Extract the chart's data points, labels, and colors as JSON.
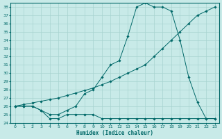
{
  "xlabel": "Humidex (Indice chaleur)",
  "ylabel": "",
  "background_color": "#c8eae8",
  "grid_color": "#a8d4d0",
  "line_color": "#006868",
  "xlim": [
    -0.5,
    23.5
  ],
  "ylim": [
    24,
    38.5
  ],
  "yticks": [
    24,
    25,
    26,
    27,
    28,
    29,
    30,
    31,
    32,
    33,
    34,
    35,
    36,
    37,
    38
  ],
  "xticks": [
    0,
    1,
    2,
    3,
    4,
    5,
    6,
    7,
    8,
    9,
    10,
    11,
    12,
    13,
    14,
    15,
    16,
    17,
    18,
    19,
    20,
    21,
    22,
    23
  ],
  "line1_x": [
    0,
    1,
    2,
    3,
    4,
    5,
    6,
    7,
    8,
    9,
    10,
    11,
    12,
    13,
    14,
    15,
    16,
    17,
    18,
    19,
    20,
    21,
    22,
    23
  ],
  "line1_y": [
    26.0,
    26.0,
    26.0,
    25.5,
    24.5,
    24.5,
    25.0,
    25.0,
    25.0,
    25.0,
    24.5,
    24.5,
    24.5,
    24.5,
    24.5,
    24.5,
    24.5,
    24.5,
    24.5,
    24.5,
    24.5,
    24.5,
    24.5,
    24.5
  ],
  "line2_x": [
    0,
    1,
    2,
    3,
    4,
    5,
    6,
    7,
    8,
    9,
    10,
    11,
    12,
    13,
    14,
    15,
    16,
    17,
    18,
    19,
    20,
    21,
    22,
    23
  ],
  "line2_y": [
    26.0,
    26.2,
    26.4,
    26.6,
    26.8,
    27.0,
    27.3,
    27.6,
    27.9,
    28.2,
    28.6,
    29.0,
    29.5,
    30.0,
    30.5,
    31.0,
    32.0,
    33.0,
    34.0,
    35.0,
    36.0,
    37.0,
    37.5,
    38.0
  ],
  "line3_x": [
    0,
    1,
    2,
    3,
    4,
    5,
    6,
    7,
    8,
    9,
    10,
    11,
    12,
    13,
    14,
    15,
    16,
    17,
    18,
    19,
    20,
    21,
    22,
    23
  ],
  "line3_y": [
    26.0,
    26.0,
    26.0,
    25.5,
    25.0,
    25.0,
    25.5,
    26.0,
    27.5,
    28.0,
    29.5,
    31.0,
    31.5,
    34.5,
    38.0,
    38.5,
    38.0,
    38.0,
    37.5,
    34.0,
    29.5,
    26.5,
    24.5,
    24.5
  ]
}
